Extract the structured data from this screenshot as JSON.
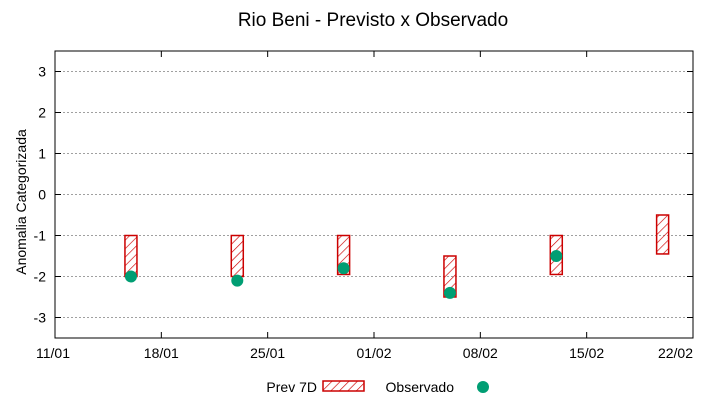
{
  "chart_data": {
    "type": "floating-bar-with-points",
    "title": "Rio Beni - Previsto x Observado",
    "xlabel": "",
    "ylabel": "Anomalia Categorizada",
    "x_ticks": [
      "11/01",
      "18/01",
      "25/01",
      "01/02",
      "08/02",
      "15/02",
      "22/02"
    ],
    "x_range_days": [
      0,
      42
    ],
    "ylim": [
      -3.5,
      3.5
    ],
    "y_ticks": [
      3,
      2,
      1,
      0,
      -1,
      -2,
      -3
    ],
    "grid": true,
    "legend_position": "bottom-center",
    "series": [
      {
        "name": "Prev 7D",
        "kind": "hatched-range-bar",
        "color": "#cc0000",
        "points": [
          {
            "day": 5,
            "low": -2.0,
            "high": -1.0
          },
          {
            "day": 12,
            "low": -2.0,
            "high": -1.0
          },
          {
            "day": 19,
            "low": -1.95,
            "high": -1.0
          },
          {
            "day": 26,
            "low": -2.5,
            "high": -1.5
          },
          {
            "day": 33,
            "low": -1.95,
            "high": -1.0
          },
          {
            "day": 40,
            "low": -1.45,
            "high": -0.5
          }
        ]
      },
      {
        "name": "Observado",
        "kind": "point",
        "color": "#009e73",
        "points": [
          {
            "day": 5,
            "value": -2.0
          },
          {
            "day": 12,
            "value": -2.1
          },
          {
            "day": 19,
            "value": -1.8
          },
          {
            "day": 26,
            "value": -2.4
          },
          {
            "day": 33,
            "value": -1.5
          }
        ]
      }
    ]
  }
}
